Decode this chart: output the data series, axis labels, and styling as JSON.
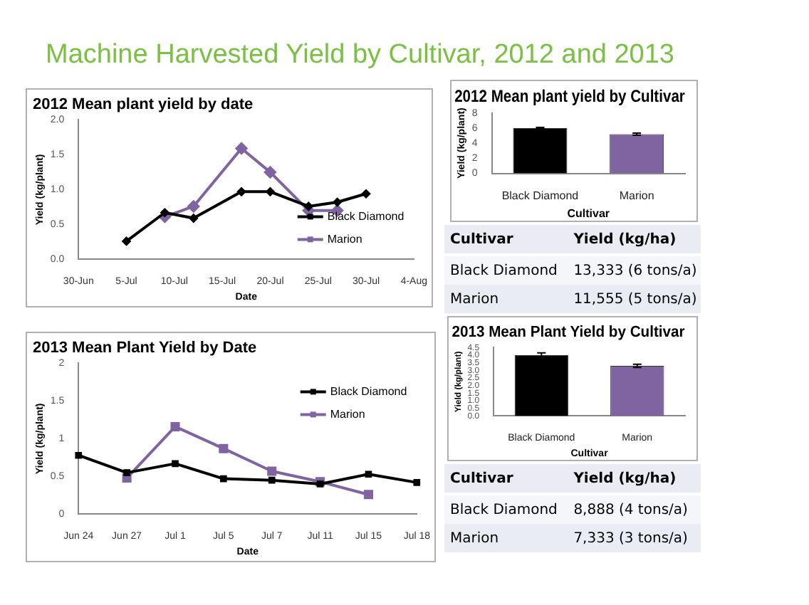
{
  "chart_data": [
    {
      "type": "line",
      "title": "2012 Mean plant yield by date",
      "xlabel": "Date",
      "ylabel": "Yield (kg/plant)",
      "annotations": [
        "Machine Harvested Yield by Cultivar, 2012 and 2013"
      ],
      "xlim": [
        "--06-30",
        "--08-04"
      ],
      "xticks": [
        {
          "value": "--06-30",
          "label": "30-Jun"
        },
        {
          "value": "--07-05",
          "label": "5-Jul"
        },
        {
          "value": "--07-10",
          "label": "10-Jul"
        },
        {
          "value": "--07-15",
          "label": "15-Jul"
        },
        {
          "value": "--07-20",
          "label": "20-Jul"
        },
        {
          "value": "--07-25",
          "label": "25-Jul"
        },
        {
          "value": "--07-30",
          "label": "30-Jul"
        },
        {
          "value": "--08-04",
          "label": "4-Aug"
        }
      ],
      "ylim": [
        0,
        2
      ],
      "yticks": [
        {
          "value": 0,
          "label": "0.0"
        },
        0.5,
        {
          "value": 1,
          "label": "1.0"
        },
        1.5,
        {
          "value": 2,
          "label": "2.0"
        }
      ],
      "legend": "bottom right",
      "marker": "diamond",
      "series": [
        {
          "name": "Black Diamond",
          "color": "#000000",
          "x": [
            "--07-05",
            "--07-09",
            "--07-12",
            "--07-17",
            "--07-20",
            "--07-24",
            "--07-27",
            "--07-30"
          ],
          "values": [
            0.26,
            0.67,
            0.59,
            0.97,
            0.97,
            0.76,
            0.82,
            0.94
          ]
        },
        {
          "name": "Marion",
          "color": "#8064a2",
          "x": [
            "--07-09",
            "--07-12",
            "--07-17",
            "--07-20",
            "--07-24",
            "--07-27"
          ],
          "values": [
            0.61,
            0.76,
            1.59,
            1.25,
            0.7,
            0.7
          ]
        }
      ]
    },
    {
      "type": "bar",
      "title": "2012 Mean plant yield by Cultivar",
      "xlabel": "Cultivar",
      "ylabel": "Yield (kg/plant)",
      "categories": [
        "Black Diamond",
        "Marion"
      ],
      "values": [
        6.0,
        5.2
      ],
      "colors": [
        "#000000",
        "#8064a2"
      ],
      "errors": [
        0.1,
        0.15
      ],
      "ylim": [
        0,
        8
      ],
      "yticks": [
        0,
        2,
        4,
        6,
        8
      ]
    },
    {
      "type": "other",
      "annotations": [
        "Cultivar",
        "Yield (kg/ha)",
        "Black Diamond",
        "13,333 (6 tons/a)",
        "Marion",
        "11,555 (5 tons/a)"
      ]
    },
    {
      "type": "line",
      "title": "2013 Mean Plant Yield by Date",
      "xlabel": "Date",
      "ylabel": "Yield (kg/plant)",
      "categories": [
        "Jun 24",
        "Jun 27",
        "Jul 1",
        "Jul 5",
        "Jul 7",
        "Jul 11",
        "Jul 15",
        "Jul 18"
      ],
      "ylim": [
        0,
        2
      ],
      "yticks": [
        0,
        0.5,
        1,
        1.5,
        2
      ],
      "legend": "top right",
      "marker": "square",
      "series": [
        {
          "name": "Black Diamond",
          "color": "#000000",
          "values": [
            0.78,
            0.55,
            0.67,
            0.47,
            0.45,
            0.4,
            0.53,
            0.42
          ]
        },
        {
          "name": "Marion",
          "color": "#8064a2",
          "values": [
            null,
            0.48,
            1.16,
            0.87,
            0.57,
            0.43,
            0.26,
            null
          ]
        }
      ]
    },
    {
      "type": "bar",
      "title": "2013 Mean Plant Yield by Cultivar",
      "xlabel": "Cultivar",
      "ylabel": "Yield (kg/plant)",
      "categories": [
        "Black Diamond",
        "Marion"
      ],
      "values": [
        4.0,
        3.3
      ],
      "colors": [
        "#000000",
        "#8064a2"
      ],
      "errors": [
        0.15,
        0.1
      ],
      "ylim": [
        0,
        4.5
      ],
      "yticks": [
        {
          "value": 0,
          "label": "0.0"
        },
        0.5,
        {
          "value": 1,
          "label": "1.0"
        },
        1.5,
        {
          "value": 2,
          "label": "2.0"
        },
        2.5,
        {
          "value": 3,
          "label": "3.0"
        },
        3.5,
        {
          "value": 4,
          "label": "4.0"
        },
        4.5
      ]
    },
    {
      "type": "other",
      "annotations": [
        "Cultivar",
        "Yield (kg/ha)",
        "Black Diamond",
        "8,888 (4 tons/a)",
        "Marion",
        "7,333 (3 tons/a)"
      ]
    }
  ]
}
